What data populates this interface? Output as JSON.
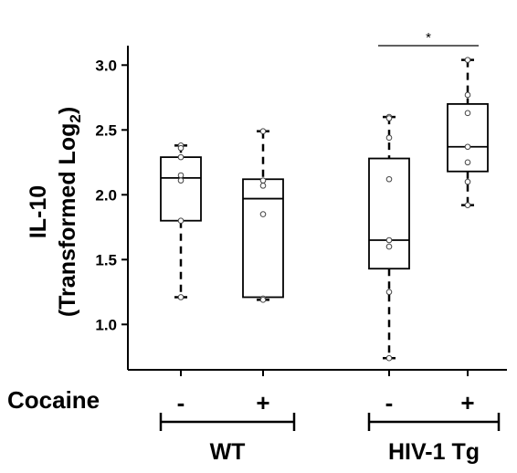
{
  "chart_data": {
    "type": "box",
    "ylabel_line1": "IL-10",
    "ylabel_line2_main": "(Transformed Log",
    "ylabel_line2_sub": "2",
    "ylabel_line2_end": ")",
    "ylim": [
      0.65,
      3.15
    ],
    "yticks": [
      1.0,
      1.5,
      2.0,
      2.5,
      3.0
    ],
    "ytick_labels": [
      "1.0",
      "1.5",
      "2.0",
      "2.5",
      "3.0"
    ],
    "factor_label": "Cocaine",
    "boxes": [
      {
        "group": "WT",
        "cocaine": "-",
        "min": 1.21,
        "q1": 1.8,
        "median": 2.13,
        "q3": 2.29,
        "max": 2.38,
        "points": [
          2.38,
          2.36,
          2.29,
          2.15,
          2.11,
          1.8,
          1.21
        ]
      },
      {
        "group": "WT",
        "cocaine": "+",
        "min": 1.19,
        "q1": 1.21,
        "median": 1.97,
        "q3": 2.12,
        "max": 2.49,
        "points": [
          2.49,
          2.11,
          2.07,
          1.85,
          1.2,
          1.19
        ]
      },
      {
        "group": "HIV-1 Tg",
        "cocaine": "-",
        "min": 0.74,
        "q1": 1.43,
        "median": 1.65,
        "q3": 2.28,
        "max": 2.6,
        "points": [
          2.6,
          2.59,
          2.44,
          2.12,
          1.65,
          1.6,
          1.25,
          0.74
        ]
      },
      {
        "group": "HIV-1 Tg",
        "cocaine": "+",
        "min": 1.92,
        "q1": 2.18,
        "median": 2.37,
        "q3": 2.7,
        "max": 3.04,
        "points": [
          3.04,
          2.77,
          2.63,
          2.37,
          2.25,
          2.1,
          1.92
        ]
      }
    ],
    "groups": [
      {
        "name": "WT",
        "members": [
          0,
          1
        ]
      },
      {
        "name": "HIV-1 Tg",
        "members": [
          2,
          3
        ]
      }
    ],
    "significance": [
      {
        "between": [
          2,
          3
        ],
        "label": "*"
      }
    ]
  }
}
